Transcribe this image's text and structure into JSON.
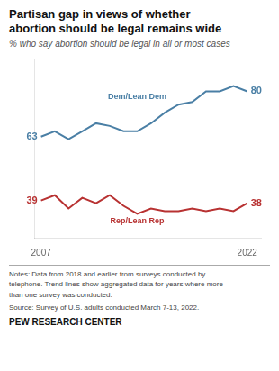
{
  "chart_data": {
    "type": "line",
    "title": "Partisan gap in views of whether\nabortion should be legal remains wide",
    "subtitle": "% who say abortion should be legal in all or most cases",
    "x": [
      2007,
      2008,
      2009,
      2010,
      2011,
      2012,
      2013,
      2014,
      2015,
      2016,
      2017,
      2018,
      2019,
      2020,
      2021,
      2022
    ],
    "series": [
      {
        "name": "Dem/Lean Dem",
        "color": "#4a7fa5",
        "values": [
          63,
          65,
          62,
          65,
          68,
          67,
          65,
          65,
          68,
          72,
          75,
          76,
          80,
          80,
          82,
          80
        ]
      },
      {
        "name": "Rep/Lean Rep",
        "color": "#b83232",
        "values": [
          39,
          41,
          36,
          40,
          38,
          41,
          37,
          34,
          36,
          35,
          35,
          36,
          35,
          36,
          35,
          38
        ]
      }
    ],
    "xlim": [
      2006.5,
      2023.0
    ],
    "ylim": [
      25,
      92
    ],
    "xticks": [
      2007,
      2022
    ],
    "tick_labels": "x",
    "grid": false,
    "annotations": [
      {
        "text": "63",
        "x": 2007,
        "y": 63
      },
      {
        "text": "39",
        "x": 2007,
        "y": 39
      },
      {
        "text": "80",
        "x": 2022,
        "y": 80
      },
      {
        "text": "38",
        "x": 2022,
        "y": 38
      }
    ],
    "notes": [
      "Notes: Data from 2018 and earlier from surveys conducted by",
      "telephone. Trend lines show aggregated data for years where more",
      "than one survey was conducted."
    ],
    "source": "Source: Survey of U.S. adults conducted March 7-13, 2022.",
    "footer": "PEW RESEARCH CENTER"
  }
}
